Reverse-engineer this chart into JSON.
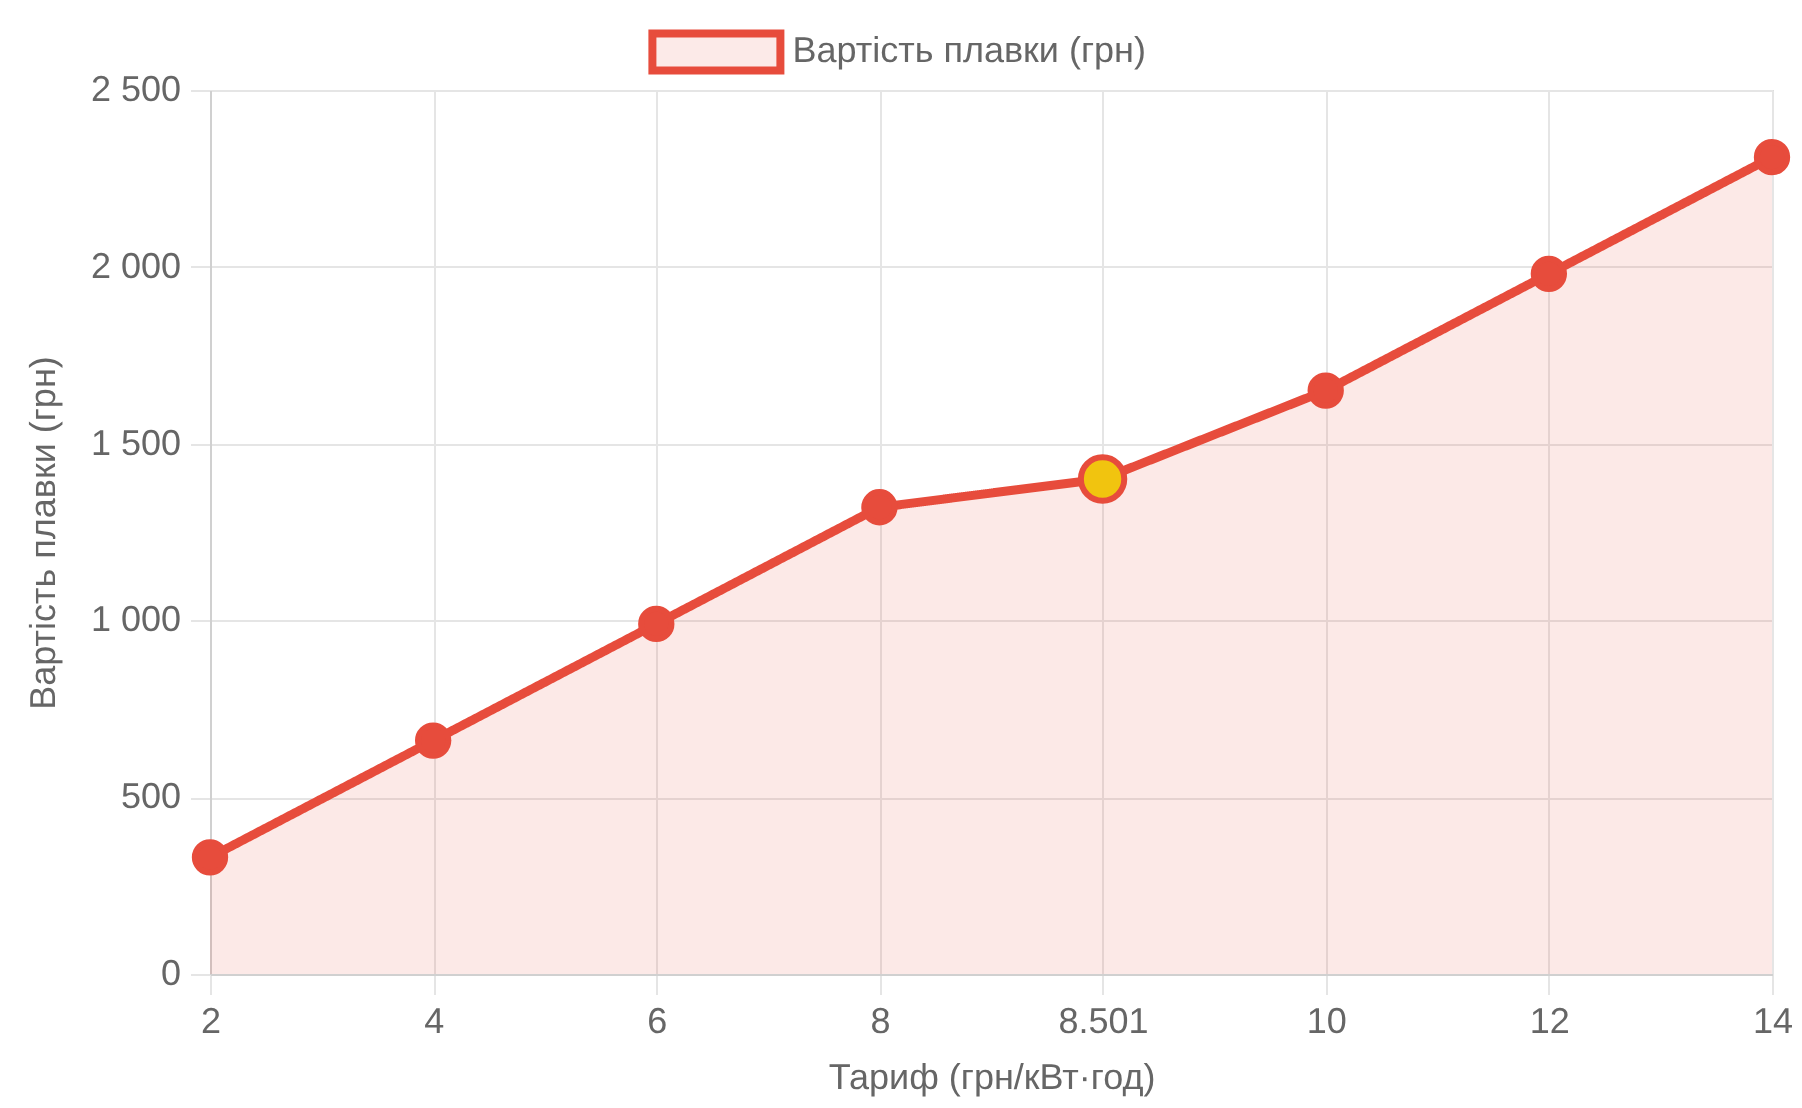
{
  "chart_data": {
    "type": "area",
    "xlabel": "Тариф (грн/кВт·год)",
    "ylabel": "Вартість плавки (грн)",
    "categories": [
      "2",
      "4",
      "6",
      "8",
      "8.501",
      "10",
      "12",
      "14"
    ],
    "series": [
      {
        "name": "Вартість плавки (грн)",
        "color": "#e74c3c",
        "colors": [
          "#e74c3c",
          "#e74c3c",
          "#e74c3c",
          "#e74c3c",
          "#f1c40f",
          "#e74c3c",
          "#e74c3c",
          "#e74c3c"
        ],
        "values": [
          330,
          660,
          990,
          1320,
          1400,
          1650,
          1980,
          2310
        ]
      }
    ],
    "ylim": [
      0,
      2500
    ],
    "yticks": [
      0,
      500,
      {
        "value": 1000,
        "label": "1 000"
      },
      {
        "value": 1500,
        "label": "1 500"
      },
      {
        "value": 2000,
        "label": "2 000"
      },
      {
        "value": 2500,
        "label": "2 500"
      }
    ],
    "grid": true,
    "legend": "top",
    "marker": "circle"
  }
}
